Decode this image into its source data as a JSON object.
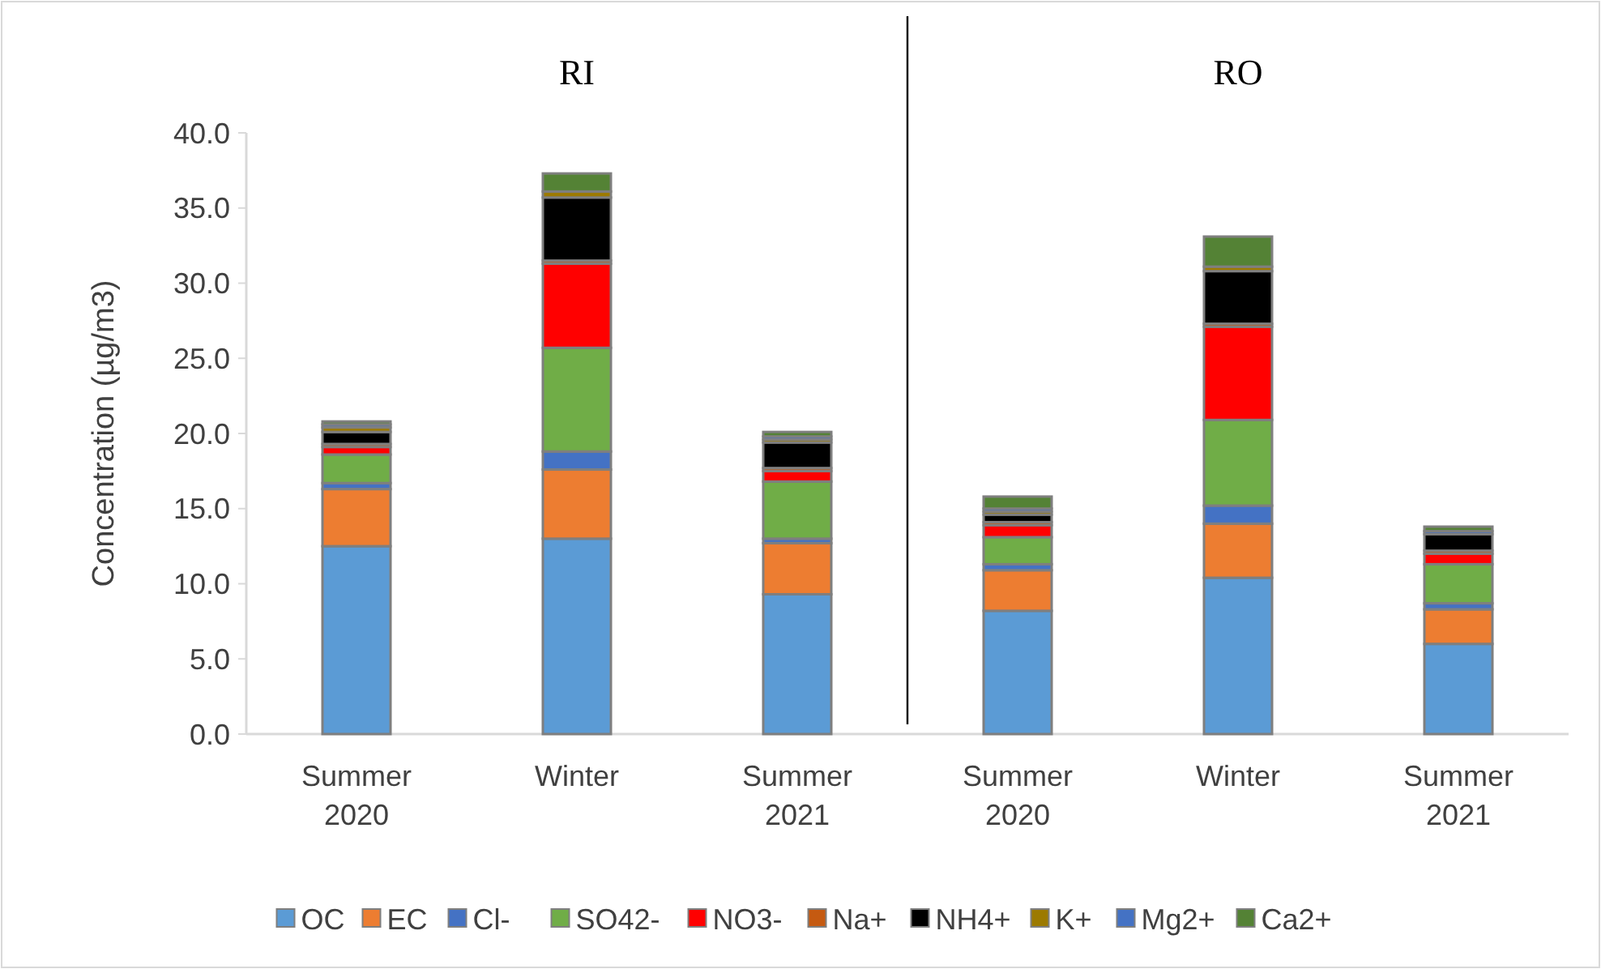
{
  "chart_data": {
    "type": "bar",
    "stacked": true,
    "ylabel": "Concentration (µg/m3)",
    "categories": [
      "Summer 2020",
      "Winter",
      "Summer 2021",
      "Summer 2020",
      "Winter",
      "Summer 2021"
    ],
    "annotations": [
      "RI",
      "RO"
    ],
    "ylim": [
      0,
      40
    ],
    "yticks": [
      {
        "value": 0,
        "label": "0.0"
      },
      {
        "value": 5,
        "label": "5.0"
      },
      {
        "value": 10,
        "label": "10.0"
      },
      {
        "value": 15,
        "label": "15.0"
      },
      {
        "value": 20,
        "label": "20.0"
      },
      {
        "value": 25,
        "label": "25.0"
      },
      {
        "value": 30,
        "label": "30.0"
      },
      {
        "value": 35,
        "label": "35.0"
      },
      {
        "value": 40,
        "label": "40.0"
      }
    ],
    "grid": false,
    "legend": "bottom",
    "series": [
      {
        "name": "OC",
        "color": "#5b9bd5",
        "values": [
          12.5,
          13.0,
          9.3,
          8.2,
          10.4,
          6.0
        ]
      },
      {
        "name": "EC",
        "color": "#ed7d31",
        "values": [
          3.8,
          4.6,
          3.4,
          2.7,
          3.6,
          2.3
        ]
      },
      {
        "name": "Cl-",
        "color": "#4472c4",
        "values": [
          0.4,
          1.2,
          0.3,
          0.4,
          1.2,
          0.4
        ]
      },
      {
        "name": "SO42-",
        "color": "#70ad47",
        "values": [
          1.9,
          6.9,
          3.8,
          1.8,
          5.7,
          2.6
        ]
      },
      {
        "name": "NO3-",
        "color": "#ff0000",
        "values": [
          0.5,
          5.6,
          0.7,
          0.8,
          6.2,
          0.7
        ]
      },
      {
        "name": "Na+",
        "color": "#c55a11",
        "values": [
          0.2,
          0.2,
          0.2,
          0.2,
          0.2,
          0.2
        ]
      },
      {
        "name": "NH4+",
        "color": "#000000",
        "values": [
          0.8,
          4.2,
          1.7,
          0.5,
          3.5,
          1.1
        ]
      },
      {
        "name": "K+",
        "color": "#9c7a00",
        "values": [
          0.3,
          0.4,
          0.2,
          0.2,
          0.3,
          null
        ]
      },
      {
        "name": "Mg2+",
        "color": "#4472c4",
        "values": [
          0.2,
          null,
          0.2,
          0.2,
          null,
          0.2
        ]
      },
      {
        "name": "Ca2+",
        "color": "#548235",
        "values": [
          0.2,
          1.2,
          0.3,
          0.8,
          2.0,
          0.3
        ]
      }
    ]
  }
}
